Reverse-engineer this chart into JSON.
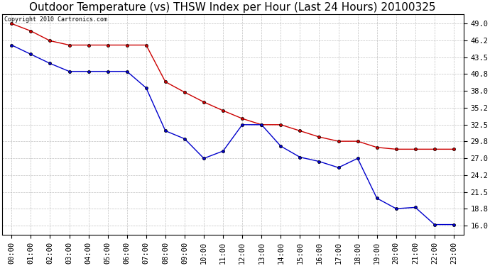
{
  "title": "Outdoor Temperature (vs) THSW Index per Hour (Last 24 Hours) 20100325",
  "copyright_text": "Copyright 2010 Cartronics.com",
  "x_labels": [
    "00:00",
    "01:00",
    "02:00",
    "03:00",
    "04:00",
    "05:00",
    "06:00",
    "07:00",
    "08:00",
    "09:00",
    "10:00",
    "11:00",
    "12:00",
    "13:00",
    "14:00",
    "15:00",
    "16:00",
    "17:00",
    "18:00",
    "19:00",
    "20:00",
    "21:00",
    "22:00",
    "23:00"
  ],
  "red_data": [
    49.0,
    47.8,
    46.2,
    45.5,
    45.5,
    45.5,
    45.5,
    45.5,
    39.5,
    37.8,
    36.2,
    34.8,
    33.5,
    32.5,
    32.5,
    31.5,
    30.5,
    29.8,
    29.8,
    28.8,
    28.5,
    28.5,
    28.5,
    28.5
  ],
  "blue_data": [
    45.5,
    44.0,
    42.5,
    41.2,
    41.2,
    41.2,
    41.2,
    38.5,
    31.5,
    30.2,
    27.0,
    28.2,
    32.5,
    32.5,
    29.0,
    27.2,
    26.5,
    25.5,
    27.0,
    20.5,
    18.8,
    19.0,
    16.2,
    16.2
  ],
  "red_color": "#cc0000",
  "blue_color": "#0000cc",
  "bg_color": "#ffffff",
  "plot_bg_color": "#ffffff",
  "grid_color": "#b0b0b0",
  "yticks": [
    16.0,
    18.8,
    21.5,
    24.2,
    27.0,
    29.8,
    32.5,
    35.2,
    38.0,
    40.8,
    43.5,
    46.2,
    49.0
  ],
  "ymin": 14.5,
  "ymax": 50.5,
  "title_fontsize": 11,
  "tick_fontsize": 7.5
}
